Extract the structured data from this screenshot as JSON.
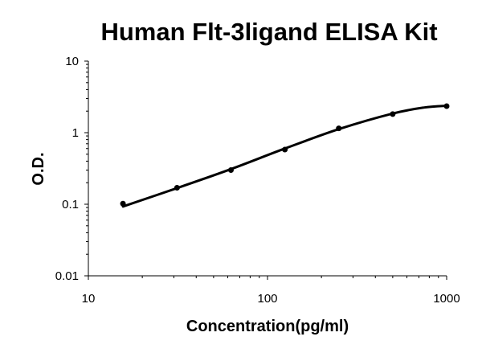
{
  "chart_data": {
    "type": "scatter",
    "title": "Human Flt-3ligand ELISA Kit",
    "xlabel": "Concentration(pg/ml)",
    "ylabel": "O.D.",
    "x_scale": "log",
    "y_scale": "log",
    "xlim": [
      10,
      1000
    ],
    "ylim": [
      0.01,
      10
    ],
    "x_ticks": [
      10,
      100,
      1000
    ],
    "x_tick_labels": [
      "10",
      "100",
      "1000"
    ],
    "y_ticks": [
      0.01,
      0.1,
      1,
      10
    ],
    "y_tick_labels": [
      "0.01",
      "0.1",
      "1",
      "10"
    ],
    "grid": false,
    "legend": "none",
    "series": [
      {
        "points": [
          {
            "x": 15.6,
            "y": 0.102
          },
          {
            "x": 31.25,
            "y": 0.17
          },
          {
            "x": 62.5,
            "y": 0.3
          },
          {
            "x": 125,
            "y": 0.58
          },
          {
            "x": 250,
            "y": 1.15
          },
          {
            "x": 500,
            "y": 1.82
          },
          {
            "x": 1000,
            "y": 2.35
          }
        ],
        "fit_curve": [
          {
            "x": 15.6,
            "y": 0.093
          },
          {
            "x": 31.25,
            "y": 0.168
          },
          {
            "x": 62.5,
            "y": 0.31
          },
          {
            "x": 125,
            "y": 0.6
          },
          {
            "x": 250,
            "y": 1.12
          },
          {
            "x": 500,
            "y": 1.85
          },
          {
            "x": 750,
            "y": 2.25
          },
          {
            "x": 1000,
            "y": 2.38
          }
        ]
      }
    ]
  }
}
